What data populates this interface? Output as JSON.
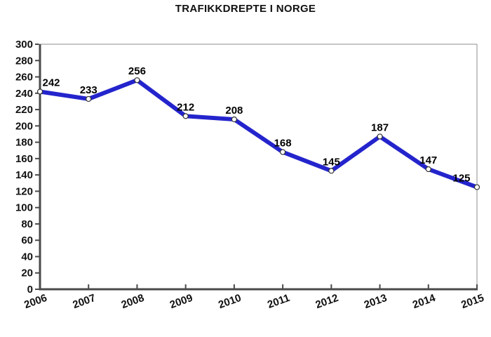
{
  "title": "TRAFIKKDREPTE I NORGE",
  "chart_data": {
    "type": "line",
    "title": "TRAFIKKDREPTE I NORGE",
    "categories": [
      "2006",
      "2007",
      "2008",
      "2009",
      "2010",
      "2011",
      "2012",
      "2013",
      "2014",
      "2015"
    ],
    "values": [
      242,
      233,
      256,
      212,
      208,
      168,
      145,
      187,
      147,
      125
    ],
    "xlabel": "",
    "ylabel": "",
    "ylim": [
      0,
      300
    ],
    "ytick_step": 20,
    "yticks": [
      0,
      20,
      40,
      60,
      80,
      100,
      120,
      140,
      160,
      180,
      200,
      220,
      240,
      260,
      280,
      300
    ],
    "grid": "off",
    "legend": "none",
    "data_labels": true,
    "x_label_rotation_deg": -20,
    "colors": {
      "line": "#2424cd",
      "marker_fill": "#ffffff",
      "marker_stroke": "#333333",
      "axis": "#4a4a4a",
      "frame": "#8c8c8c",
      "text": "#111111",
      "background": "#ffffff"
    }
  }
}
